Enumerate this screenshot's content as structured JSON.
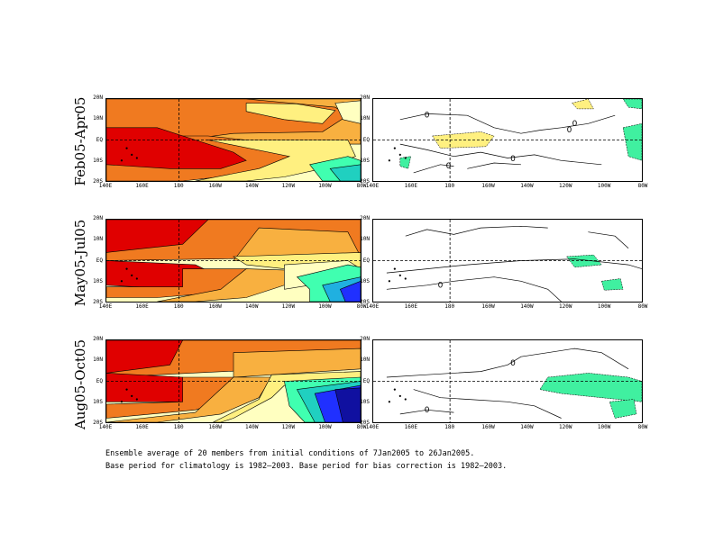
{
  "chart_data": [
    {
      "type": "heatmap",
      "row_label": "Feb05-Apr05",
      "panel": "left",
      "lat_ticks": [
        "20N",
        "10N",
        "EQ",
        "10S",
        "20S"
      ],
      "lon_ticks": [
        "140E",
        "160E",
        "180",
        "160W",
        "140W",
        "120W",
        "100W",
        "80W"
      ],
      "contour_labels": []
    },
    {
      "type": "heatmap",
      "row_label": "Feb05-Apr05",
      "panel": "right",
      "lat_ticks": [
        "20N",
        "10N",
        "EQ",
        "10S",
        "20S"
      ],
      "lon_ticks": [
        "140E",
        "160E",
        "180",
        "160W",
        "140W",
        "120W",
        "100W",
        "80W"
      ],
      "contour_labels": [
        "0",
        "0",
        "0",
        "0",
        "0"
      ]
    },
    {
      "type": "heatmap",
      "row_label": "May05-Jul05",
      "panel": "left",
      "lat_ticks": [
        "20N",
        "10N",
        "EQ",
        "10S",
        "20S"
      ],
      "lon_ticks": [
        "140E",
        "160E",
        "180",
        "160W",
        "140W",
        "120W",
        "100W",
        "80W"
      ],
      "contour_labels": []
    },
    {
      "type": "heatmap",
      "row_label": "May05-Jul05",
      "panel": "right",
      "lat_ticks": [
        "20N",
        "10N",
        "EQ",
        "10S",
        "20S"
      ],
      "lon_ticks": [
        "140E",
        "160E",
        "180",
        "160W",
        "140W",
        "120W",
        "100W",
        "80W"
      ],
      "contour_labels": [
        "0"
      ]
    },
    {
      "type": "heatmap",
      "row_label": "Aug05-Oct05",
      "panel": "left",
      "lat_ticks": [
        "20N",
        "10N",
        "EQ",
        "10S",
        "20S"
      ],
      "lon_ticks": [
        "140E",
        "160E",
        "180",
        "160W",
        "140W",
        "120W",
        "100W",
        "80W"
      ],
      "contour_labels": []
    },
    {
      "type": "heatmap",
      "row_label": "Aug05-Oct05",
      "panel": "right",
      "lat_ticks": [
        "20N",
        "10N",
        "EQ",
        "10S",
        "20S"
      ],
      "lon_ticks": [
        "140E",
        "160E",
        "180",
        "160W",
        "140W",
        "120W",
        "100W",
        "80W"
      ],
      "contour_labels": [
        "0",
        "0"
      ]
    }
  ],
  "rows": [
    {
      "label": "Feb05-Apr05"
    },
    {
      "label": "May05-Jul05"
    },
    {
      "label": "Aug05-Oct05"
    }
  ],
  "colors": {
    "red": "#e00000",
    "orange": "#f07a20",
    "light_orange": "#f8b040",
    "yellow": "#fff080",
    "pale_yellow": "#ffffc0",
    "aqua": "#40ffb0",
    "teal": "#20d0c0",
    "cyan": "#20b0e0",
    "blue": "#2030ff",
    "navy": "#1010a0",
    "positive": "#fff080",
    "negative": "#40f0a0"
  },
  "footer": {
    "line1": "Ensemble average of 20 members from initial conditions of 7Jan2005 to 26Jan2005.",
    "line2": "Base period for climatology is 1982–2003. Base period for bias correction is 1982–2003."
  }
}
